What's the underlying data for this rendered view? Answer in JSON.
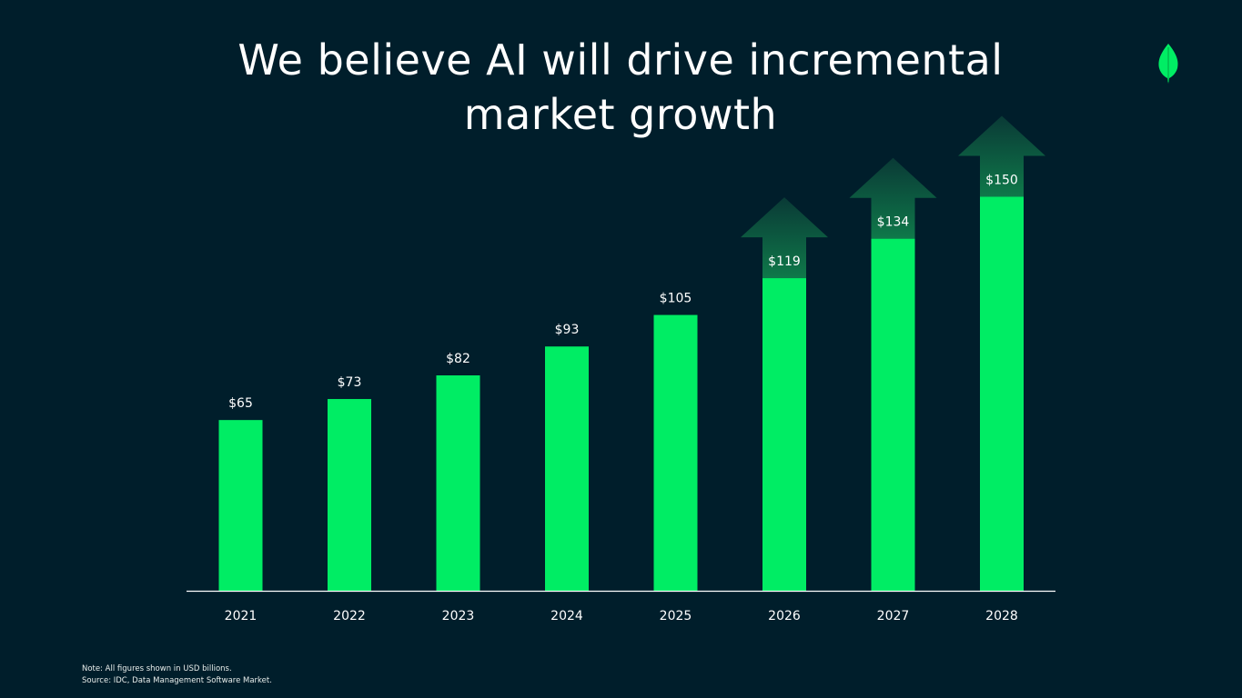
{
  "title": "We believe AI will drive incremental market growth",
  "colors": {
    "background": "#001E2B",
    "bar": "#00ED64",
    "text": "#FFFFFF",
    "arrow": "#023430"
  },
  "logo": {
    "icon": "leaf-icon"
  },
  "chart_data": {
    "type": "bar",
    "categories": [
      "2021",
      "2022",
      "2023",
      "2024",
      "2025",
      "2026",
      "2027",
      "2028"
    ],
    "values": [
      65,
      73,
      82,
      93,
      105,
      119,
      134,
      150
    ],
    "value_labels": [
      "$65",
      "$73",
      "$82",
      "$93",
      "$105",
      "$119",
      "$134",
      "$150"
    ],
    "growth_arrows_on": [
      "2026",
      "2027",
      "2028"
    ],
    "ylim": [
      0,
      180
    ],
    "xlabel": "",
    "ylabel": "",
    "grid": false,
    "legend": "none"
  },
  "footnotes": {
    "note": "Note: All figures shown in USD billions.",
    "source": "Source: IDC, Data Management Software Market."
  }
}
